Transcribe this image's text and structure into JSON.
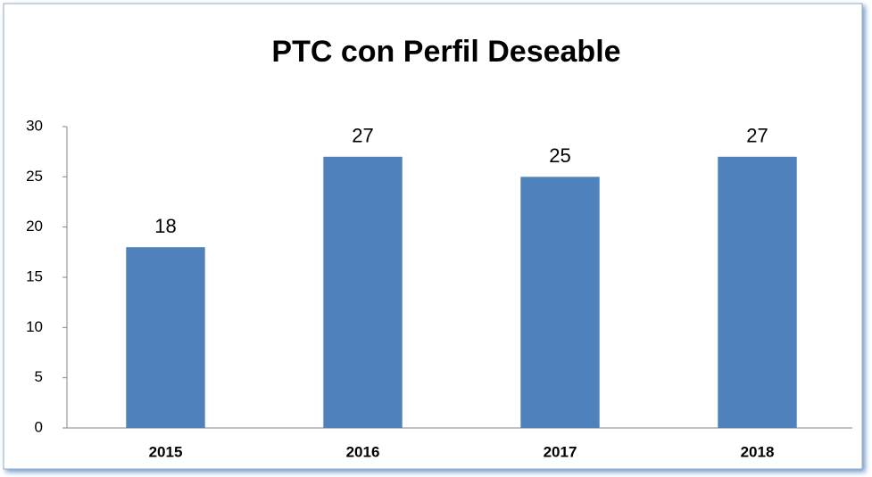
{
  "chart_data": {
    "type": "bar",
    "title": "PTC con Perfil Deseable",
    "categories": [
      "2015",
      "2016",
      "2017",
      "2018"
    ],
    "values": [
      18,
      27,
      25,
      27
    ],
    "color": "#4f81bd",
    "ylim": [
      0,
      30
    ],
    "yticks": [
      0,
      5,
      10,
      15,
      20,
      25,
      30
    ],
    "grid": false
  }
}
